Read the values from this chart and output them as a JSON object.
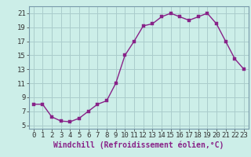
{
  "x": [
    0,
    1,
    2,
    3,
    4,
    5,
    6,
    7,
    8,
    9,
    10,
    11,
    12,
    13,
    14,
    15,
    16,
    17,
    18,
    19,
    20,
    21,
    22,
    23
  ],
  "y": [
    8.0,
    8.0,
    6.2,
    5.6,
    5.5,
    6.0,
    7.0,
    8.0,
    8.5,
    11.0,
    15.0,
    17.0,
    19.2,
    19.5,
    20.5,
    21.0,
    20.5,
    20.0,
    20.5,
    21.0,
    19.5,
    17.0,
    14.5,
    13.0
  ],
  "line_color": "#882288",
  "marker_color": "#882288",
  "bg_color": "#cceee8",
  "grid_color": "#aacccc",
  "xlabel": "Windchill (Refroidissement éolien,°C)",
  "xlim": [
    -0.5,
    23.5
  ],
  "ylim": [
    4.5,
    22.0
  ],
  "yticks": [
    5,
    7,
    9,
    11,
    13,
    15,
    17,
    19,
    21
  ],
  "xticks": [
    0,
    1,
    2,
    3,
    4,
    5,
    6,
    7,
    8,
    9,
    10,
    11,
    12,
    13,
    14,
    15,
    16,
    17,
    18,
    19,
    20,
    21,
    22,
    23
  ],
  "xlabel_fontsize": 7.0,
  "tick_fontsize": 6.5,
  "line_width": 1.0,
  "marker_size": 2.5
}
